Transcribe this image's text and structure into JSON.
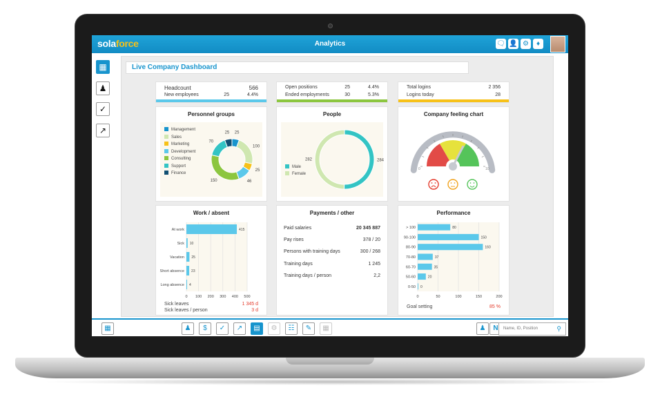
{
  "app": {
    "logo_a": "sola",
    "logo_b": "force",
    "title": "Analytics"
  },
  "dashboard": {
    "title": "Live Company Dashboard"
  },
  "kpi": {
    "headcount": {
      "label": "Headcount",
      "value": "566"
    },
    "new_employees": {
      "label": "New employees",
      "value": "25",
      "pct": "4.4%"
    },
    "open_positions": {
      "label": "Open positions",
      "value": "25",
      "pct": "4.4%"
    },
    "ended_employments": {
      "label": "Ended employments",
      "value": "30",
      "pct": "5.3%"
    },
    "total_logins": {
      "label": "Total logins",
      "value": "2 356"
    },
    "logins_today": {
      "label": "Logins today",
      "value": "28"
    }
  },
  "personnel": {
    "title": "Personnel groups",
    "legend": [
      "Management",
      "Sales",
      "Marketing",
      "Development",
      "Consulting",
      "Support",
      "Finance"
    ],
    "colors": [
      "#1794cd",
      "#cfe7b0",
      "#f7c118",
      "#5bc8ea",
      "#8cc63f",
      "#33c4c4",
      "#114f72"
    ],
    "values": [
      25,
      100,
      25,
      46,
      150,
      70,
      25
    ],
    "labels": [
      "25",
      "100",
      "25",
      "46",
      "150",
      "70",
      "25"
    ]
  },
  "people": {
    "title": "People",
    "legend": [
      "Male",
      "Female"
    ],
    "colors": [
      "#33c4c4",
      "#cfe7b0"
    ],
    "values": [
      284,
      282
    ],
    "labels": [
      "284",
      "282"
    ]
  },
  "feeling": {
    "title": "Company feeling chart",
    "min": "0",
    "max": "10",
    "needle": 0.65
  },
  "work": {
    "title": "Work / absent",
    "categories": [
      "At work",
      "Sick",
      "Vacation",
      "Short absence",
      "Long absence"
    ],
    "values": [
      415,
      10,
      25,
      23,
      4
    ],
    "value_labels": [
      "415",
      "10",
      "25",
      "23",
      "4"
    ],
    "ticks": [
      "0",
      "100",
      "200",
      "300",
      "400",
      "500"
    ],
    "xmax": 500,
    "sick_leaves": {
      "label": "Sick leaves",
      "value": "1 345 d"
    },
    "sick_per_person": {
      "label": "Sick leaves / person",
      "value": "3 d"
    }
  },
  "payments": {
    "title": "Payments / other",
    "rows": [
      {
        "label": "Paid salaries",
        "value": "20 345 887"
      },
      {
        "label": "Pay rises",
        "value": "378 / 20"
      },
      {
        "label": "Persons with training days",
        "value": "300 / 268"
      },
      {
        "label": "Training days",
        "value": "1 245"
      },
      {
        "label": "Training days / person",
        "value": "2,2"
      }
    ]
  },
  "performance": {
    "title": "Performance",
    "categories": [
      "> 100",
      "90-100",
      "80-90",
      "70-80",
      "60-70",
      "50-60",
      "0-50"
    ],
    "values": [
      80,
      150,
      160,
      37,
      35,
      20,
      0
    ],
    "value_labels": [
      "80",
      "150",
      "160",
      "37",
      "35",
      "20",
      "0"
    ],
    "ticks": [
      "0",
      "50",
      "100",
      "150",
      "200"
    ],
    "xmax": 200,
    "goal": {
      "label": "Goal setting",
      "value": "85 %"
    }
  },
  "search": {
    "placeholder": "Name, ID, Position"
  },
  "colors": {
    "accent": "#1794cd",
    "kpi1": "#5bc8ea",
    "kpi2": "#8cc63f",
    "kpi3": "#f7c118",
    "red": "#e43b2c"
  }
}
